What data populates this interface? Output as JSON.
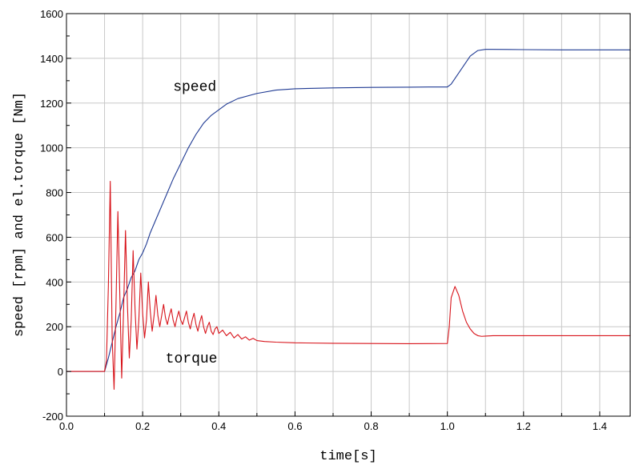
{
  "chart_data": {
    "type": "line",
    "title": "",
    "xlabel": "time[s]",
    "ylabel": "speed [rpm] and el.torque [Nm]",
    "xlim": [
      0.0,
      1.48
    ],
    "ylim": [
      -200,
      1600
    ],
    "x_ticks": [
      0.0,
      0.2,
      0.4,
      0.6,
      0.8,
      1.0,
      1.2,
      1.4
    ],
    "x_tick_labels": [
      "0.0",
      "0.2",
      "0.4",
      "0.6",
      "0.8",
      "1.0",
      "1.2",
      "1.4"
    ],
    "y_ticks": [
      -200,
      0,
      200,
      400,
      600,
      800,
      1000,
      1200,
      1400,
      1600
    ],
    "y_tick_labels": [
      "-200",
      "0",
      "200",
      "400",
      "600",
      "800",
      "1000",
      "1200",
      "1400",
      "1600"
    ],
    "grid": true,
    "annotations": [
      {
        "text": "speed",
        "x": 0.28,
        "y": 1255
      },
      {
        "text": "torque",
        "x": 0.26,
        "y": 40
      }
    ],
    "series": [
      {
        "color": "#1f3a93",
        "x": [
          0,
          0.1,
          0.11,
          0.12,
          0.13,
          0.14,
          0.15,
          0.16,
          0.17,
          0.18,
          0.19,
          0.2,
          0.21,
          0.22,
          0.24,
          0.26,
          0.28,
          0.3,
          0.32,
          0.34,
          0.36,
          0.38,
          0.4,
          0.42,
          0.45,
          0.5,
          0.55,
          0.6,
          0.7,
          0.8,
          0.9,
          0.95,
          0.98,
          1.0,
          1.01,
          1.02,
          1.04,
          1.06,
          1.08,
          1.1,
          1.12,
          1.2,
          1.3,
          1.48
        ],
        "y": [
          0,
          0,
          60,
          130,
          200,
          260,
          330,
          370,
          420,
          450,
          500,
          530,
          570,
          620,
          700,
          780,
          860,
          930,
          1000,
          1060,
          1110,
          1145,
          1170,
          1195,
          1220,
          1243,
          1258,
          1264,
          1268,
          1270,
          1271,
          1272,
          1272,
          1272,
          1285,
          1310,
          1360,
          1410,
          1435,
          1440,
          1440,
          1439,
          1438,
          1438
        ]
      },
      {
        "color": "#d8141b",
        "x": [
          0,
          0.1,
          0.105,
          0.11,
          0.115,
          0.12,
          0.125,
          0.13,
          0.135,
          0.14,
          0.145,
          0.15,
          0.155,
          0.16,
          0.165,
          0.17,
          0.175,
          0.18,
          0.185,
          0.19,
          0.195,
          0.2,
          0.205,
          0.21,
          0.215,
          0.22,
          0.225,
          0.23,
          0.235,
          0.24,
          0.245,
          0.25,
          0.255,
          0.26,
          0.265,
          0.27,
          0.275,
          0.28,
          0.285,
          0.29,
          0.295,
          0.3,
          0.305,
          0.31,
          0.315,
          0.32,
          0.325,
          0.33,
          0.335,
          0.34,
          0.345,
          0.35,
          0.355,
          0.36,
          0.365,
          0.37,
          0.375,
          0.38,
          0.385,
          0.39,
          0.395,
          0.4,
          0.41,
          0.42,
          0.43,
          0.44,
          0.45,
          0.46,
          0.47,
          0.48,
          0.49,
          0.5,
          0.52,
          0.55,
          0.6,
          0.7,
          0.8,
          0.9,
          1.0,
          1.005,
          1.01,
          1.02,
          1.03,
          1.04,
          1.05,
          1.06,
          1.07,
          1.08,
          1.09,
          1.1,
          1.12,
          1.2,
          1.3,
          1.48
        ],
        "y": [
          0,
          0,
          50,
          380,
          850,
          150,
          -80,
          300,
          715,
          350,
          -30,
          280,
          630,
          300,
          60,
          230,
          540,
          280,
          100,
          230,
          440,
          260,
          150,
          230,
          400,
          270,
          180,
          250,
          340,
          250,
          200,
          250,
          300,
          240,
          210,
          250,
          280,
          230,
          200,
          240,
          270,
          230,
          210,
          240,
          270,
          220,
          190,
          230,
          260,
          210,
          180,
          220,
          250,
          200,
          170,
          200,
          220,
          180,
          165,
          190,
          200,
          170,
          185,
          160,
          175,
          150,
          165,
          145,
          155,
          140,
          148,
          138,
          134,
          131,
          128,
          126,
          125,
          124,
          125,
          200,
          330,
          380,
          340,
          270,
          220,
          190,
          170,
          160,
          157,
          158,
          160,
          160,
          160,
          160
        ]
      }
    ]
  }
}
